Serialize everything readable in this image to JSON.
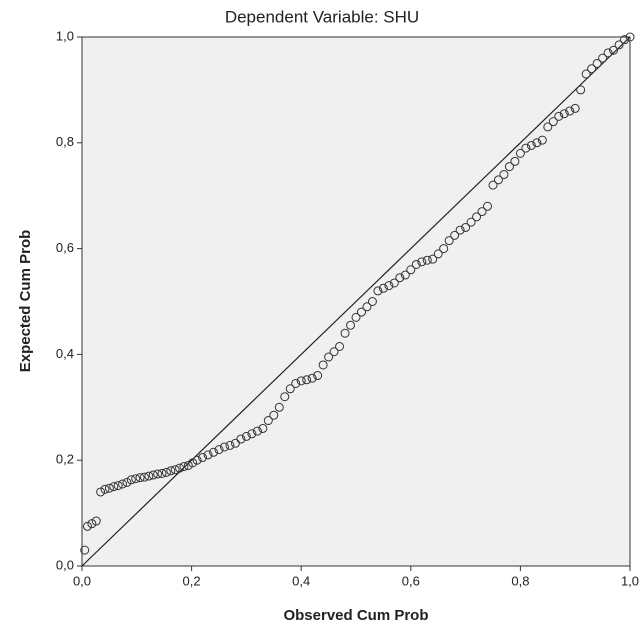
{
  "chart_data": {
    "type": "scatter",
    "title": "Dependent Variable: SHU",
    "xlabel": "Observed Cum Prob",
    "ylabel": "Expected Cum Prob",
    "xlim": [
      0,
      1
    ],
    "ylim": [
      0,
      1
    ],
    "xticks": [
      {
        "value": 0,
        "label": "0,0"
      },
      {
        "value": 0.2,
        "label": "0,2"
      },
      {
        "value": 0.4,
        "label": "0,4"
      },
      {
        "value": 0.6,
        "label": "0,6"
      },
      {
        "value": 0.8,
        "label": "0,8"
      },
      {
        "value": 1,
        "label": "1,0"
      }
    ],
    "yticks": [
      {
        "value": 0,
        "label": "0,0"
      },
      {
        "value": 0.2,
        "label": "0,2"
      },
      {
        "value": 0.4,
        "label": "0,4"
      },
      {
        "value": 0.6,
        "label": "0,6"
      },
      {
        "value": 0.8,
        "label": "0,8"
      },
      {
        "value": 1,
        "label": "1,0"
      }
    ],
    "color": "#333333",
    "x": [
      0.005,
      0.01,
      0.018,
      0.026,
      0.034,
      0.042,
      0.05,
      0.058,
      0.066,
      0.074,
      0.082,
      0.09,
      0.098,
      0.106,
      0.114,
      0.122,
      0.13,
      0.138,
      0.146,
      0.154,
      0.162,
      0.17,
      0.178,
      0.186,
      0.194,
      0.202,
      0.21,
      0.22,
      0.23,
      0.24,
      0.25,
      0.26,
      0.27,
      0.28,
      0.29,
      0.3,
      0.31,
      0.32,
      0.33,
      0.34,
      0.35,
      0.36,
      0.37,
      0.38,
      0.39,
      0.4,
      0.41,
      0.42,
      0.43,
      0.44,
      0.45,
      0.46,
      0.47,
      0.48,
      0.49,
      0.5,
      0.51,
      0.52,
      0.53,
      0.54,
      0.55,
      0.56,
      0.57,
      0.58,
      0.59,
      0.6,
      0.61,
      0.62,
      0.63,
      0.64,
      0.65,
      0.66,
      0.67,
      0.68,
      0.69,
      0.7,
      0.71,
      0.72,
      0.73,
      0.74,
      0.75,
      0.76,
      0.77,
      0.78,
      0.79,
      0.8,
      0.81,
      0.82,
      0.83,
      0.84,
      0.85,
      0.86,
      0.87,
      0.88,
      0.89,
      0.9,
      0.91,
      0.92,
      0.93,
      0.94,
      0.95,
      0.96,
      0.97,
      0.98,
      0.99,
      1.0
    ],
    "values": [
      0.03,
      0.075,
      0.08,
      0.085,
      0.14,
      0.145,
      0.147,
      0.15,
      0.152,
      0.155,
      0.158,
      0.163,
      0.165,
      0.167,
      0.168,
      0.17,
      0.172,
      0.174,
      0.175,
      0.177,
      0.18,
      0.182,
      0.185,
      0.188,
      0.19,
      0.195,
      0.2,
      0.205,
      0.21,
      0.215,
      0.22,
      0.225,
      0.228,
      0.232,
      0.24,
      0.245,
      0.25,
      0.255,
      0.26,
      0.275,
      0.285,
      0.3,
      0.32,
      0.335,
      0.345,
      0.35,
      0.352,
      0.355,
      0.36,
      0.38,
      0.395,
      0.405,
      0.415,
      0.44,
      0.455,
      0.47,
      0.48,
      0.49,
      0.5,
      0.52,
      0.525,
      0.53,
      0.535,
      0.545,
      0.55,
      0.56,
      0.57,
      0.575,
      0.578,
      0.58,
      0.59,
      0.6,
      0.615,
      0.625,
      0.635,
      0.64,
      0.65,
      0.66,
      0.67,
      0.68,
      0.72,
      0.73,
      0.74,
      0.755,
      0.765,
      0.78,
      0.79,
      0.795,
      0.8,
      0.805,
      0.83,
      0.84,
      0.85,
      0.855,
      0.86,
      0.865,
      0.9,
      0.93,
      0.94,
      0.95,
      0.96,
      0.97,
      0.975,
      0.985,
      0.995,
      1.0
    ]
  }
}
